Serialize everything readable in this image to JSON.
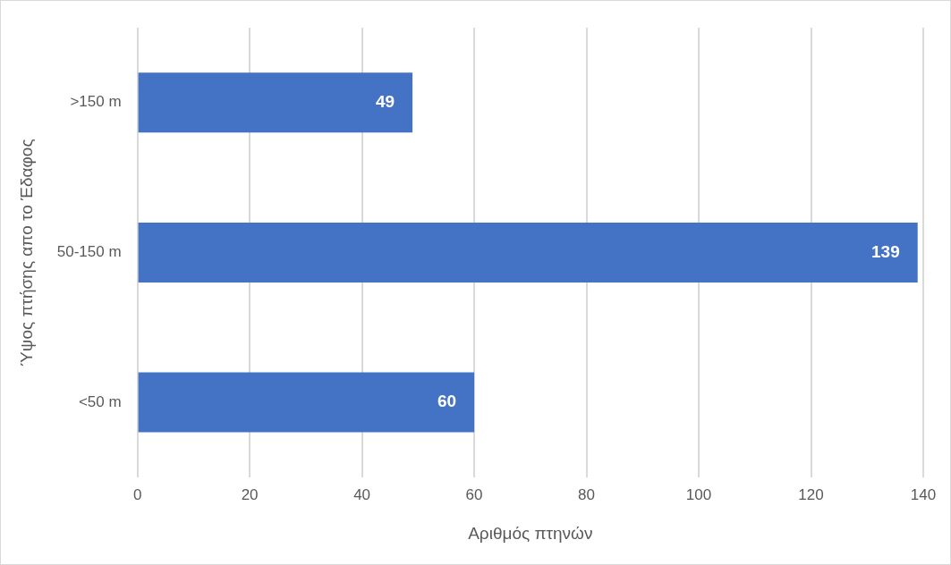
{
  "chart_data": {
    "type": "bar",
    "orientation": "horizontal",
    "xlabel": "Αριθμός πτηνών",
    "ylabel": "Ύψος πτήσης απο το Έδαφος",
    "categories": [
      ">150 m",
      "50-150 m",
      "<50 m"
    ],
    "values": [
      49,
      139,
      60
    ],
    "color": "#4472c4",
    "xlim": [
      0,
      140
    ],
    "xticks": [
      0,
      20,
      40,
      60,
      80,
      100,
      120,
      140
    ],
    "grid": "x",
    "data_labels": true,
    "legend": false
  }
}
